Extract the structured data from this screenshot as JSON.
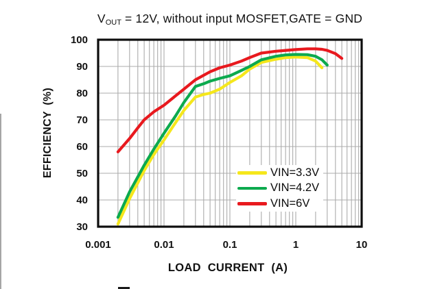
{
  "header": {
    "title_prefix": "V",
    "title_sub": "OUT",
    "title_rest": " = 12V, without input MOSFET,GATE = GND"
  },
  "axes": {
    "y_label": "EFFICIENCY (%)",
    "x_label": "LOAD CURRENT (A)"
  },
  "colors": {
    "grid": "#ababab",
    "frame": "#0d0d0d",
    "background": "#ffffff"
  },
  "chart_data": {
    "type": "line",
    "title": "VOUT = 12V, without input MOSFET,GATE = GND",
    "xlabel": "LOAD CURRENT (A)",
    "ylabel": "EFFICIENCY (%)",
    "x_scale": "log",
    "xlim": [
      0.001,
      10
    ],
    "ylim": [
      30,
      100
    ],
    "x_ticks": [
      {
        "value": 0.001,
        "label": "0.001"
      },
      {
        "value": 0.01,
        "label": "0.01"
      },
      {
        "value": 0.1,
        "label": "0.1"
      },
      {
        "value": 1,
        "label": "1"
      },
      {
        "value": 10,
        "label": "10"
      }
    ],
    "y_ticks": [
      100,
      90,
      80,
      70,
      60,
      50,
      40,
      30
    ],
    "grid": true,
    "legend_position": "inside lower-right",
    "series": [
      {
        "name": "VIN=3.3V",
        "color": "#f5e71c",
        "x": [
          0.002,
          0.003,
          0.005,
          0.007,
          0.01,
          0.015,
          0.02,
          0.03,
          0.04,
          0.05,
          0.07,
          0.1,
          0.15,
          0.2,
          0.3,
          0.5,
          0.7,
          1,
          1.5,
          2,
          2.5
        ],
        "y": [
          31,
          40.5,
          51,
          57,
          62.5,
          69,
          73.5,
          78.5,
          79.5,
          80,
          81.5,
          84,
          86.5,
          89,
          91.5,
          92.7,
          93.3,
          93.5,
          93.3,
          92,
          89.5
        ]
      },
      {
        "name": "VIN=4.2V",
        "color": "#0caa4e",
        "x": [
          0.002,
          0.003,
          0.005,
          0.007,
          0.01,
          0.015,
          0.02,
          0.03,
          0.04,
          0.05,
          0.07,
          0.1,
          0.15,
          0.2,
          0.3,
          0.5,
          0.7,
          1,
          1.5,
          2,
          2.5,
          3
        ],
        "y": [
          33.5,
          43,
          53,
          59,
          65,
          71.5,
          76.5,
          82.5,
          83.5,
          84.5,
          85.5,
          86.5,
          88.5,
          90,
          92.5,
          93.8,
          94.3,
          94.5,
          94.4,
          93.8,
          92.5,
          90.5
        ]
      },
      {
        "name": "VIN=6V",
        "color": "#e8191e",
        "x": [
          0.002,
          0.003,
          0.004,
          0.005,
          0.007,
          0.01,
          0.015,
          0.02,
          0.03,
          0.05,
          0.07,
          0.1,
          0.15,
          0.2,
          0.3,
          0.5,
          0.7,
          1,
          1.5,
          2,
          2.5,
          3,
          4,
          5
        ],
        "y": [
          58,
          63,
          67,
          70,
          73,
          75.5,
          79,
          81.5,
          85,
          88,
          89.5,
          90.5,
          92,
          93.3,
          95,
          95.7,
          96,
          96.3,
          96.6,
          96.6,
          96.4,
          96,
          94.8,
          93
        ]
      }
    ]
  }
}
